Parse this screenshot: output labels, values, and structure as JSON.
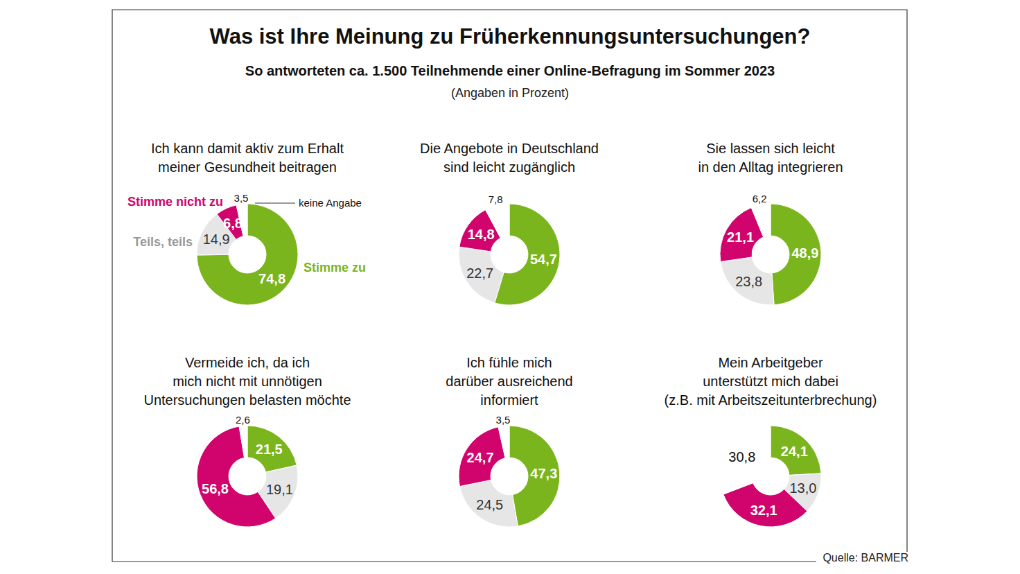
{
  "header": {
    "title": "Was ist Ihre Meinung zu Früherkennungsuntersuchungen?",
    "subtitle": "So antworteten ca. 1.500 Teilnehmende einer Online-Befragung im Sommer 2023",
    "note": "(Angaben in Prozent)"
  },
  "categories": [
    "Stimme zu",
    "Teils, teils",
    "Stimme nicht zu",
    "keine Angabe"
  ],
  "colors": [
    "#7ab51d",
    "#e6e6e6",
    "#d0046c",
    "#ffffff"
  ],
  "chart_data": [
    {
      "type": "donut",
      "title": [
        "Ich kann damit aktiv zum Erhalt",
        "meiner Gesundheit beitragen"
      ],
      "values": [
        74.8,
        14.9,
        6.8,
        3.5
      ],
      "value_labels": [
        "74,8",
        "14,9",
        "6,8",
        "3,5"
      ],
      "data_labels": true,
      "legend": "around"
    },
    {
      "type": "donut",
      "title": [
        "Die Angebote in Deutschland",
        "sind leicht zugänglich"
      ],
      "values": [
        54.7,
        22.7,
        14.8,
        7.8
      ],
      "value_labels": [
        "54,7",
        "22,7",
        "14,8",
        "7,8"
      ],
      "data_labels": true
    },
    {
      "type": "donut",
      "title": [
        "Sie lassen sich leicht",
        "in den Alltag integrieren"
      ],
      "values": [
        48.9,
        23.8,
        21.1,
        6.2
      ],
      "value_labels": [
        "48,9",
        "23,8",
        "21,1",
        "6,2"
      ],
      "data_labels": true
    },
    {
      "type": "donut",
      "title": [
        "Vermeide ich, da ich",
        "mich nicht mit unnötigen",
        "Untersuchungen belasten möchte"
      ],
      "values": [
        21.5,
        19.1,
        56.8,
        2.6
      ],
      "value_labels": [
        "21,5",
        "19,1",
        "56,8",
        "2,6"
      ],
      "data_labels": true
    },
    {
      "type": "donut",
      "title": [
        "Ich fühle mich",
        "darüber ausreichend",
        "informiert"
      ],
      "values": [
        47.3,
        24.5,
        24.7,
        3.5
      ],
      "value_labels": [
        "47,3",
        "24,5",
        "24,7",
        "3,5"
      ],
      "data_labels": true
    },
    {
      "type": "donut",
      "title": [
        "Mein Arbeitgeber",
        "unterstützt mich dabei",
        "(z.B. mit Arbeitszeitunterbrechung)"
      ],
      "values": [
        24.1,
        13.0,
        32.1,
        30.8
      ],
      "value_labels": [
        "24,1",
        "13,0",
        "32,1",
        "30,8"
      ],
      "data_labels": true
    }
  ],
  "source": "Quelle: BARMER"
}
